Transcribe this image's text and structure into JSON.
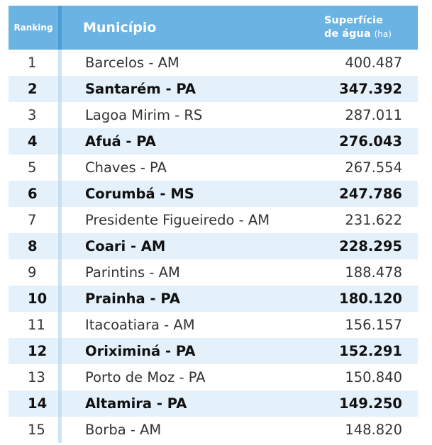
{
  "header": {
    "ranking": "Ranking",
    "municipio": "Município",
    "superficie_line1": "Superfície",
    "superficie_line2": "de água",
    "unit": "(ha)"
  },
  "rows": [
    {
      "rank": "1",
      "municipio": "Barcelos - AM",
      "valor": "400.487"
    },
    {
      "rank": "2",
      "municipio": "Santarém - PA",
      "valor": "347.392"
    },
    {
      "rank": "3",
      "municipio": "Lagoa Mirim - RS",
      "valor": "287.011"
    },
    {
      "rank": "4",
      "municipio": "Afuá - PA",
      "valor": "276.043"
    },
    {
      "rank": "5",
      "municipio": "Chaves - PA",
      "valor": "267.554"
    },
    {
      "rank": "6",
      "municipio": "Corumbá - MS",
      "valor": "247.786"
    },
    {
      "rank": "7",
      "municipio": "Presidente Figueiredo - AM",
      "valor": "231.622"
    },
    {
      "rank": "8",
      "municipio": "Coari - AM",
      "valor": "228.295"
    },
    {
      "rank": "9",
      "municipio": "Parintins - AM",
      "valor": "188.478"
    },
    {
      "rank": "10",
      "municipio": "Prainha - PA",
      "valor": "180.120"
    },
    {
      "rank": "11",
      "municipio": "Itacoatiara - AM",
      "valor": "156.157"
    },
    {
      "rank": "12",
      "municipio": "Oriximiná - PA",
      "valor": "152.291"
    },
    {
      "rank": "13",
      "municipio": "Porto de Moz - PA",
      "valor": "150.840"
    },
    {
      "rank": "14",
      "municipio": "Altamira - PA",
      "valor": "149.250"
    },
    {
      "rank": "15",
      "municipio": "Borba - AM",
      "valor": "148.820"
    }
  ],
  "colors": {
    "header_bg": "#6ab3e3",
    "alt_row_bg": "#e4f0fa",
    "text": "#333333"
  }
}
